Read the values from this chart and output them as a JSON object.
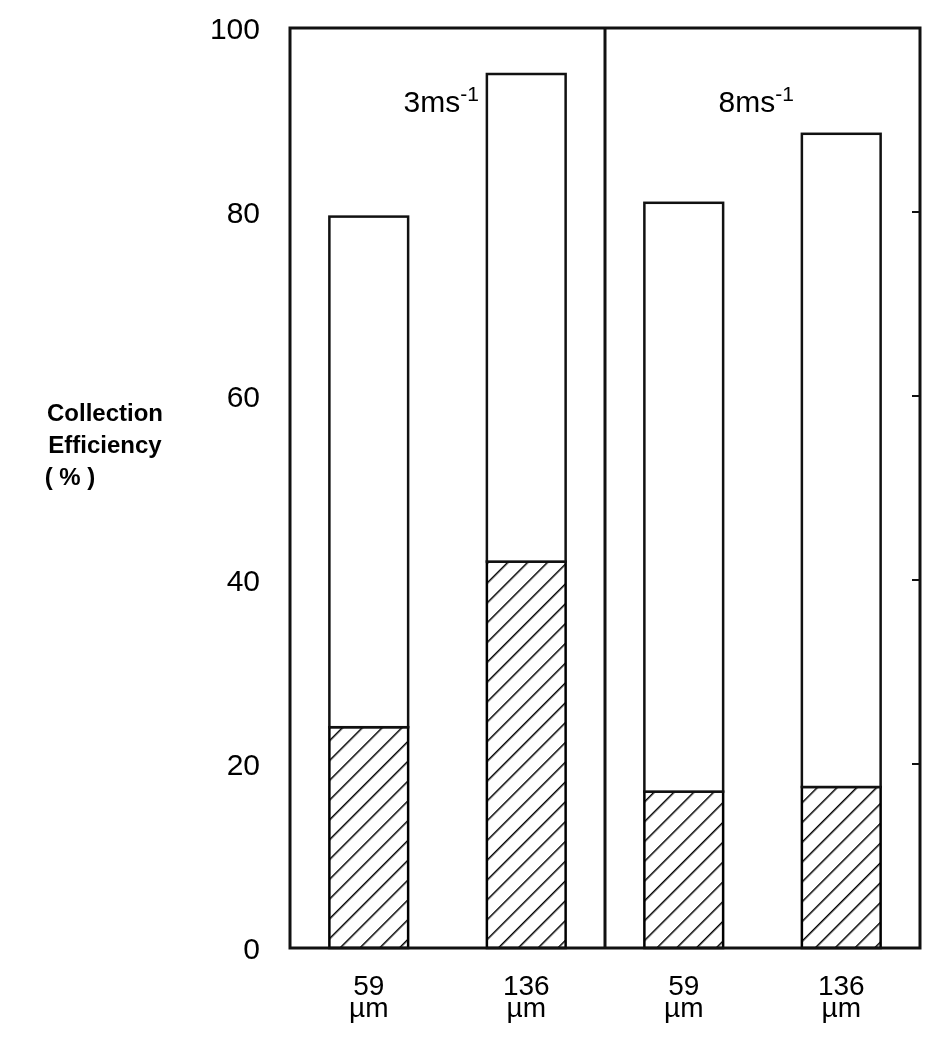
{
  "chart_data": {
    "type": "bar",
    "stacked": true,
    "ylabel": "Collection Efficiency ( % )",
    "categories": [
      "59 µm",
      "136 µm",
      "59 µm",
      "136 µm"
    ],
    "series": [
      {
        "color": "#000000",
        "values": [
          24,
          42,
          17,
          17.5
        ]
      },
      {
        "color": "#ffffff",
        "values": [
          55.5,
          53,
          64,
          71
        ]
      }
    ],
    "ylim": [
      0,
      100
    ],
    "yticks": [
      0,
      20,
      40,
      60,
      80,
      100
    ],
    "annotations": [
      "3ms$^{-1}$",
      "8ms$^{-1}$"
    ]
  }
}
